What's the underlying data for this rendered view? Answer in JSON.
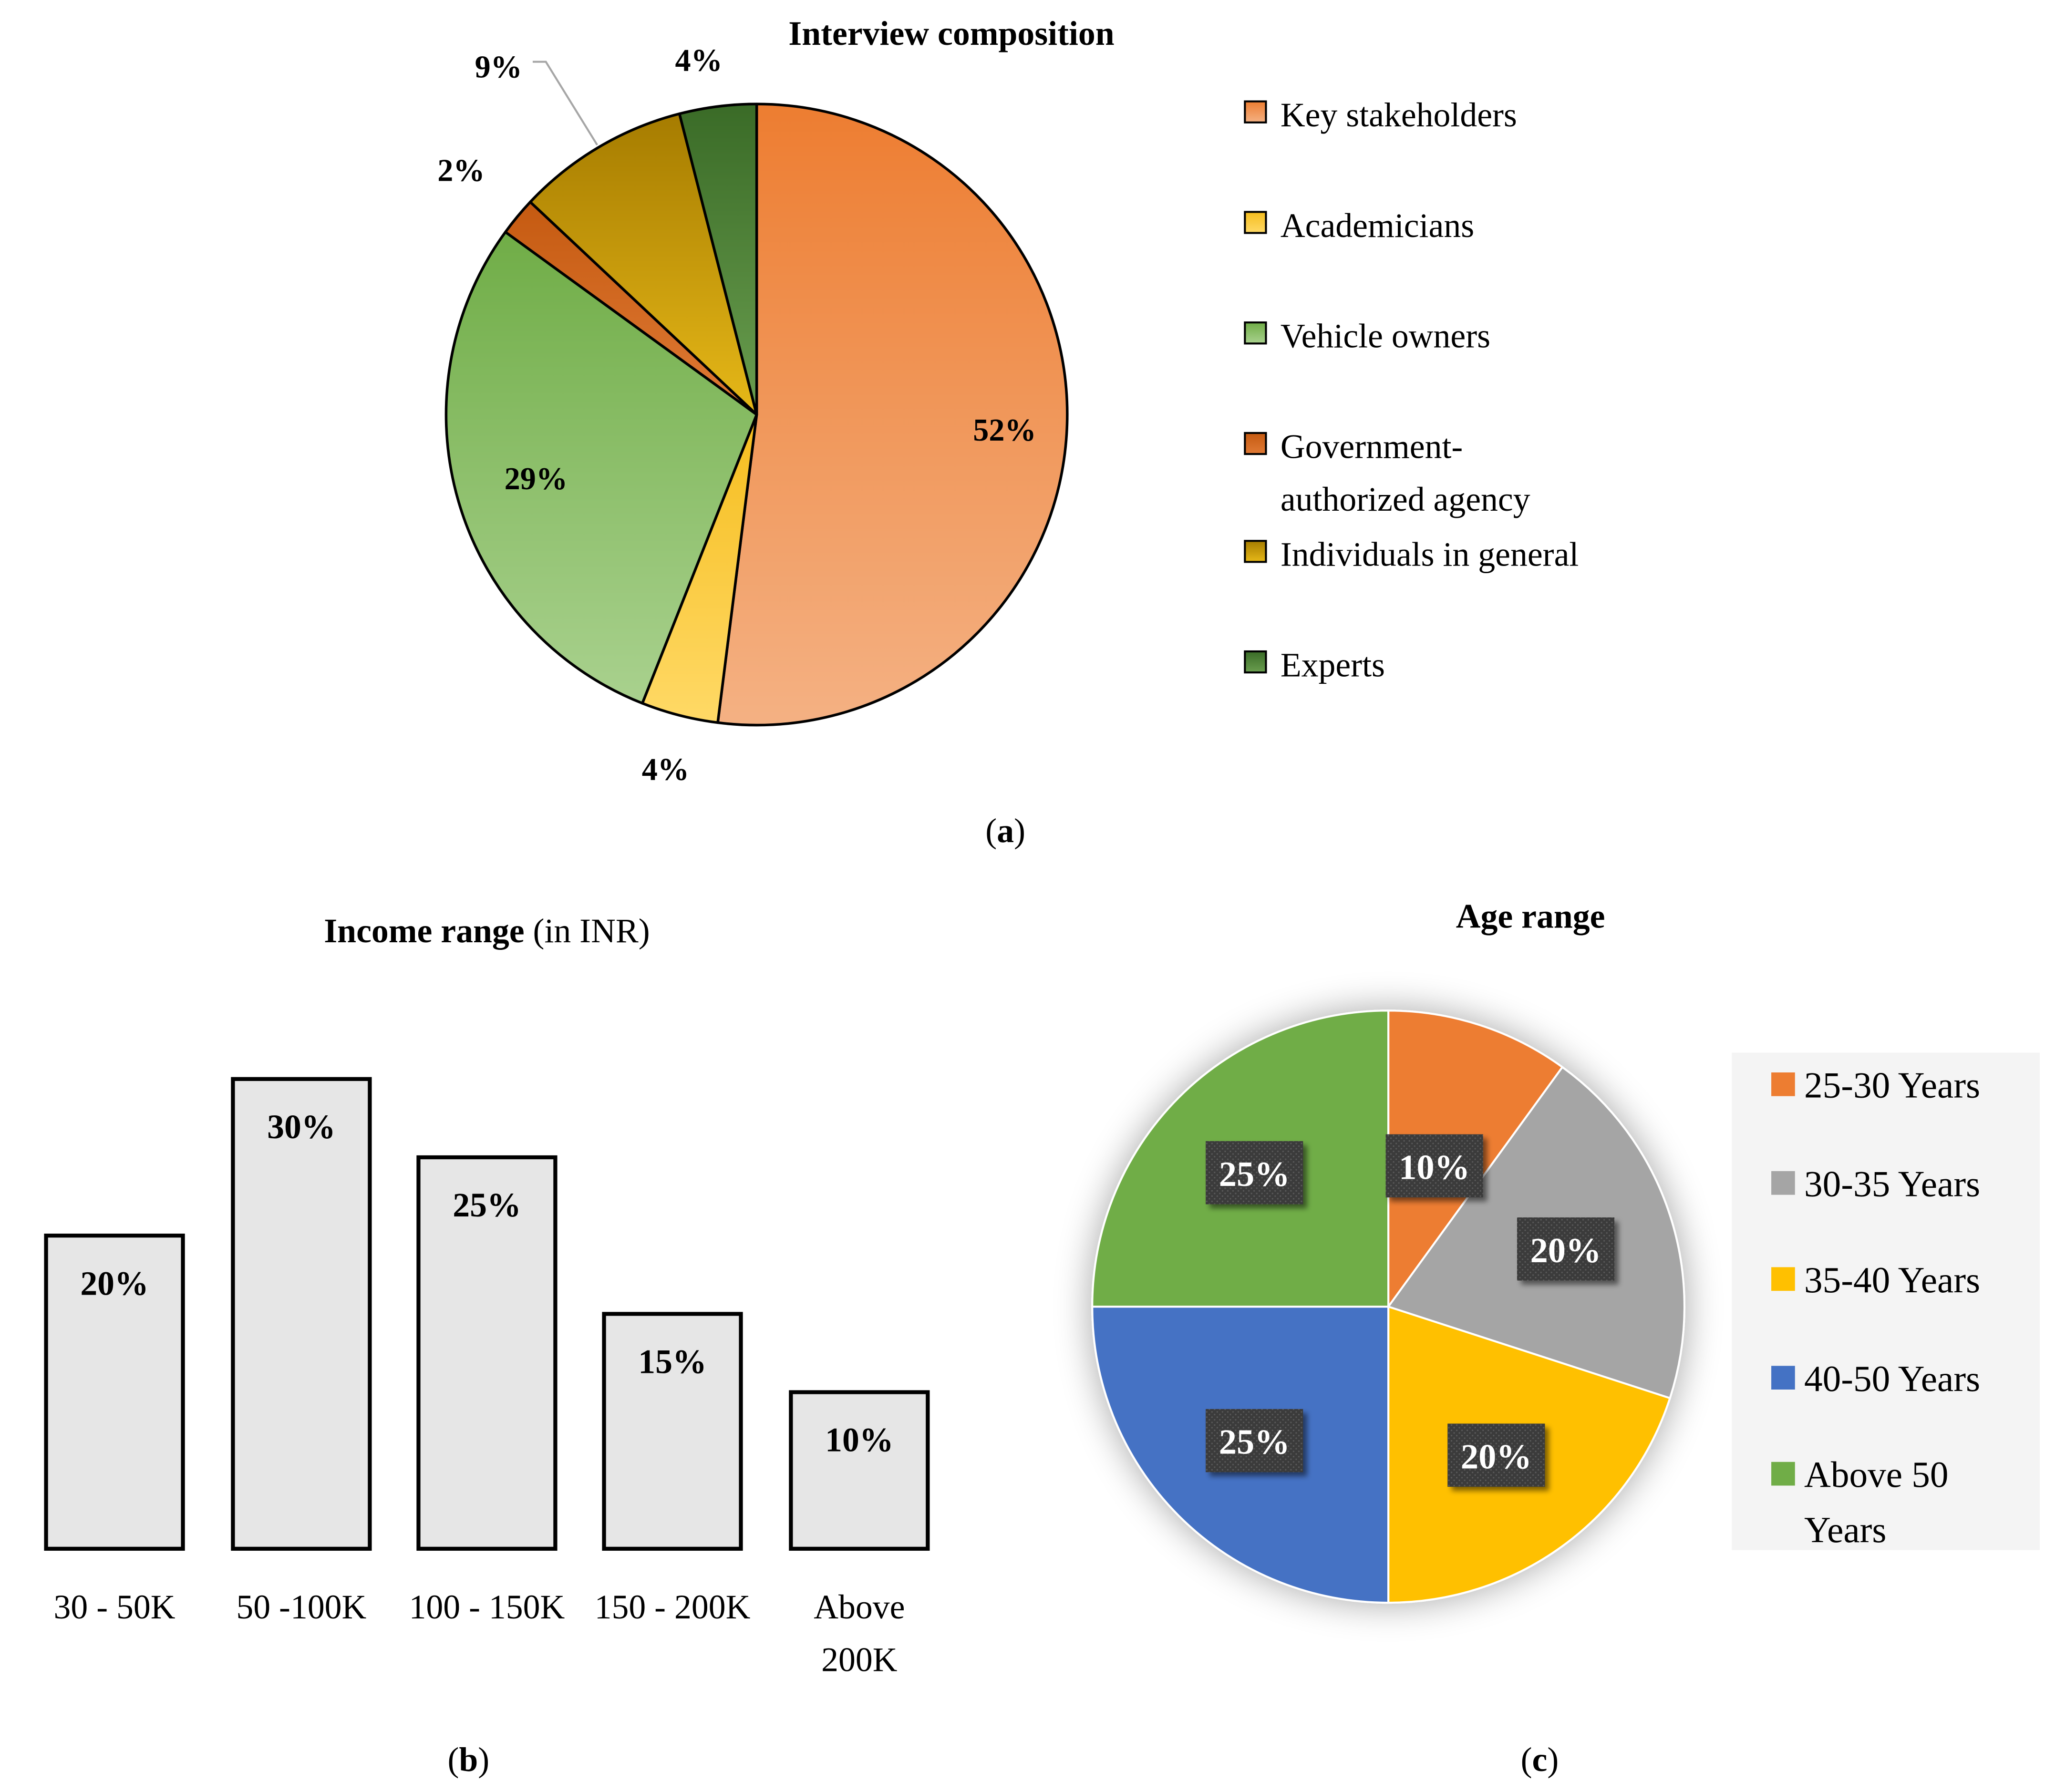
{
  "colors": {
    "key_stakeholders_top": "#ED7D31",
    "key_stakeholders_bottom": "#F4B183",
    "academicians_top": "#F5BD1E",
    "academicians_bottom": "#FFD966",
    "vehicle_owners_top": "#70AD47",
    "vehicle_owners_bottom": "#A9D18E",
    "gov_agency_top": "#C55A11",
    "gov_agency_bottom": "#E07A35",
    "individuals_top": "#A67C00",
    "individuals_bottom": "#E6B818",
    "experts_top": "#3A6B27",
    "experts_bottom": "#6A9E4F",
    "bar_fill": "#E6E6E6",
    "age_25_30": "#ED7D31",
    "age_30_35": "#A5A5A5",
    "age_35_40": "#FFC000",
    "age_40_50": "#4472C4",
    "age_above_50": "#70AD47",
    "age_label_bg": "#404040",
    "legend_bg": "#F4F4F4"
  },
  "chart_data": [
    {
      "type": "pie",
      "title": "Interview composition",
      "panel_label": "a",
      "start_angle_deg": 0,
      "direction": "clockwise",
      "slices": [
        {
          "name": "Key stakeholders",
          "value": 52,
          "label": "52%",
          "color_top": "#ED7D31",
          "color_bottom": "#F4B183"
        },
        {
          "name": "Academicians",
          "value": 4,
          "label": "4%",
          "color_top": "#F5BD1E",
          "color_bottom": "#FFD966"
        },
        {
          "name": "Vehicle owners",
          "value": 29,
          "label": "29%",
          "color_top": "#70AD47",
          "color_bottom": "#A9D18E"
        },
        {
          "name": "Government-authorized agency",
          "value": 2,
          "label": "2%",
          "color_top": "#C55A11",
          "color_bottom": "#E07A35"
        },
        {
          "name": "Individuals in general",
          "value": 9,
          "label": "9%",
          "color_top": "#A67C00",
          "color_bottom": "#E6B818"
        },
        {
          "name": "Experts",
          "value": 4,
          "label": "4%",
          "color_top": "#3A6B27",
          "color_bottom": "#6A9E4F"
        }
      ],
      "legend": [
        {
          "lines": [
            "Key stakeholders"
          ]
        },
        {
          "lines": [
            "Academicians"
          ]
        },
        {
          "lines": [
            "Vehicle owners"
          ]
        },
        {
          "lines": [
            "Government-",
            "authorized agency"
          ]
        },
        {
          "lines": [
            "Individuals in general"
          ]
        },
        {
          "lines": [
            "Experts"
          ]
        }
      ],
      "legend_position": "right"
    },
    {
      "type": "bar",
      "title_bold": "Income range",
      "title_rest": " (in INR)",
      "panel_label": "b",
      "categories": [
        "30 - 50K",
        "50 -100K",
        "100 - 150K",
        "150 - 200K",
        "Above 200K"
      ],
      "category_lines": [
        [
          "30 - 50K"
        ],
        [
          "50 -100K"
        ],
        [
          "100 - 150K"
        ],
        [
          "150 - 200K"
        ],
        [
          "Above",
          "200K"
        ]
      ],
      "values": [
        20,
        30,
        25,
        15,
        10
      ],
      "labels": [
        "20%",
        "30%",
        "25%",
        "15%",
        "10%"
      ],
      "ylim": [
        0,
        30
      ],
      "grid": false,
      "xlabel": "",
      "ylabel": ""
    },
    {
      "type": "pie",
      "title": "Age range",
      "panel_label": "c",
      "start_angle_deg": 0,
      "direction": "clockwise",
      "slices": [
        {
          "name": "25-30 Years",
          "value": 10,
          "label": "10%",
          "color": "#ED7D31"
        },
        {
          "name": "30-35 Years",
          "value": 20,
          "label": "20%",
          "color": "#A5A5A5"
        },
        {
          "name": "35-40 Years",
          "value": 20,
          "label": "20%",
          "color": "#FFC000"
        },
        {
          "name": "40-50 Years",
          "value": 25,
          "label": "25%",
          "color": "#4472C4"
        },
        {
          "name": "Above 50 Years",
          "value": 25,
          "label": "25%",
          "color": "#70AD47"
        }
      ],
      "legend": [
        {
          "lines": [
            "25-30 Years"
          ]
        },
        {
          "lines": [
            "30-35 Years"
          ]
        },
        {
          "lines": [
            "35-40 Years"
          ]
        },
        {
          "lines": [
            "40-50 Years"
          ]
        },
        {
          "lines": [
            "Above 50",
            "Years"
          ]
        }
      ],
      "legend_position": "right"
    }
  ]
}
